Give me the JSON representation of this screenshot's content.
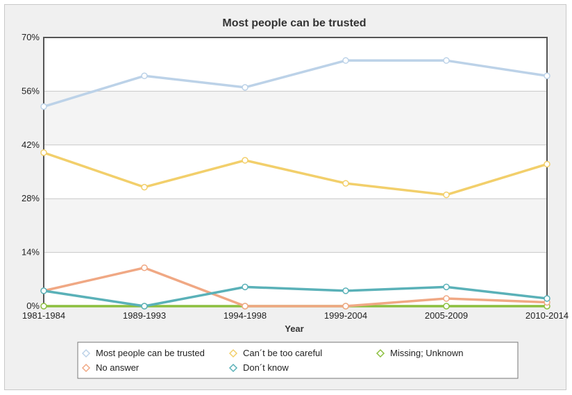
{
  "chart_data": {
    "type": "line",
    "title": "Most people can be trusted",
    "xlabel": "Year",
    "ylabel": "",
    "categories": [
      "1981-1984",
      "1989-1993",
      "1994-1998",
      "1999-2004",
      "2005-2009",
      "2010-2014"
    ],
    "ylim": [
      0,
      70
    ],
    "yticks": [
      0,
      14,
      28,
      42,
      56,
      70
    ],
    "ytick_labels": [
      "0%",
      "14%",
      "28%",
      "42%",
      "56%",
      "70%"
    ],
    "grid": true,
    "legend_position": "bottom",
    "series": [
      {
        "name": "Most people can be trusted",
        "color": "#bcd2e8",
        "values": [
          52,
          60,
          57,
          64,
          64,
          60
        ]
      },
      {
        "name": "Can´t be too careful",
        "color": "#f2cf6b",
        "values": [
          40,
          31,
          38,
          32,
          29,
          37
        ]
      },
      {
        "name": "Missing; Unknown",
        "color": "#8cbf3f",
        "values": [
          0,
          0,
          0,
          0,
          0,
          0
        ]
      },
      {
        "name": "No answer",
        "color": "#f0a884",
        "values": [
          4,
          10,
          0,
          0,
          2,
          1
        ]
      },
      {
        "name": "Don´t know",
        "color": "#5ab1b8",
        "values": [
          4,
          0,
          5,
          4,
          5,
          2
        ]
      }
    ]
  }
}
